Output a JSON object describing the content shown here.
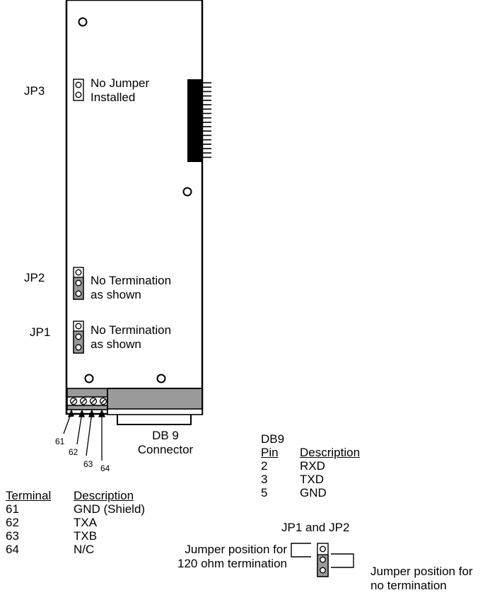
{
  "board": {
    "jp3": {
      "label": "JP3",
      "note": "No Jumper\nInstalled"
    },
    "jp2": {
      "label": "JP2",
      "note": "No Termination\nas shown"
    },
    "jp1": {
      "label": "JP1",
      "note": "No Termination\nas shown"
    },
    "db9_label": "DB 9\nConnector",
    "terminal_numbers": [
      "61",
      "62",
      "63",
      "64"
    ]
  },
  "terminal_table": {
    "headers": [
      "Terminal",
      "Description"
    ],
    "rows": [
      [
        "61",
        "GND (Shield)"
      ],
      [
        "62",
        "TXA"
      ],
      [
        "63",
        "TXB"
      ],
      [
        "64",
        "N/C"
      ]
    ]
  },
  "db9_table": {
    "caption": "DB9",
    "headers": [
      "Pin",
      "Description"
    ],
    "rows": [
      [
        "2",
        "RXD"
      ],
      [
        "3",
        "TXD"
      ],
      [
        "5",
        "GND"
      ]
    ]
  },
  "jumper_legend": {
    "title": "JP1 and JP2",
    "left_text": "Jumper position for\n120 ohm termination",
    "right_text": "Jumper position for\nno termination"
  }
}
